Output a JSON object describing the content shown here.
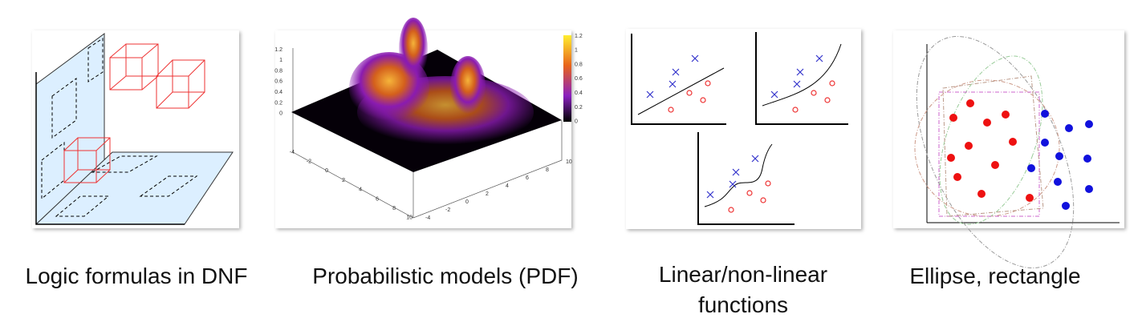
{
  "panels": [
    {
      "caption": "Logic formulas in DNF"
    },
    {
      "caption": "Probabilistic models (PDF)",
      "z_ticks": [
        "1.2",
        "1",
        "0.8",
        "0.6",
        "0.4",
        "0.2",
        "0"
      ],
      "colorbar_ticks": [
        "1.2",
        "1",
        "0.8",
        "0.6",
        "0.4",
        "0.2",
        "0"
      ],
      "x_ticks": [
        "-4",
        "-2",
        "0",
        "2",
        "4",
        "6",
        "8",
        "10"
      ],
      "y_ticks": [
        "-4",
        "-2",
        "0",
        "2",
        "4",
        "6",
        "8",
        "10"
      ]
    },
    {
      "caption": "Linear/non-linear functions"
    },
    {
      "caption": "Ellipse, rectangle"
    }
  ]
}
